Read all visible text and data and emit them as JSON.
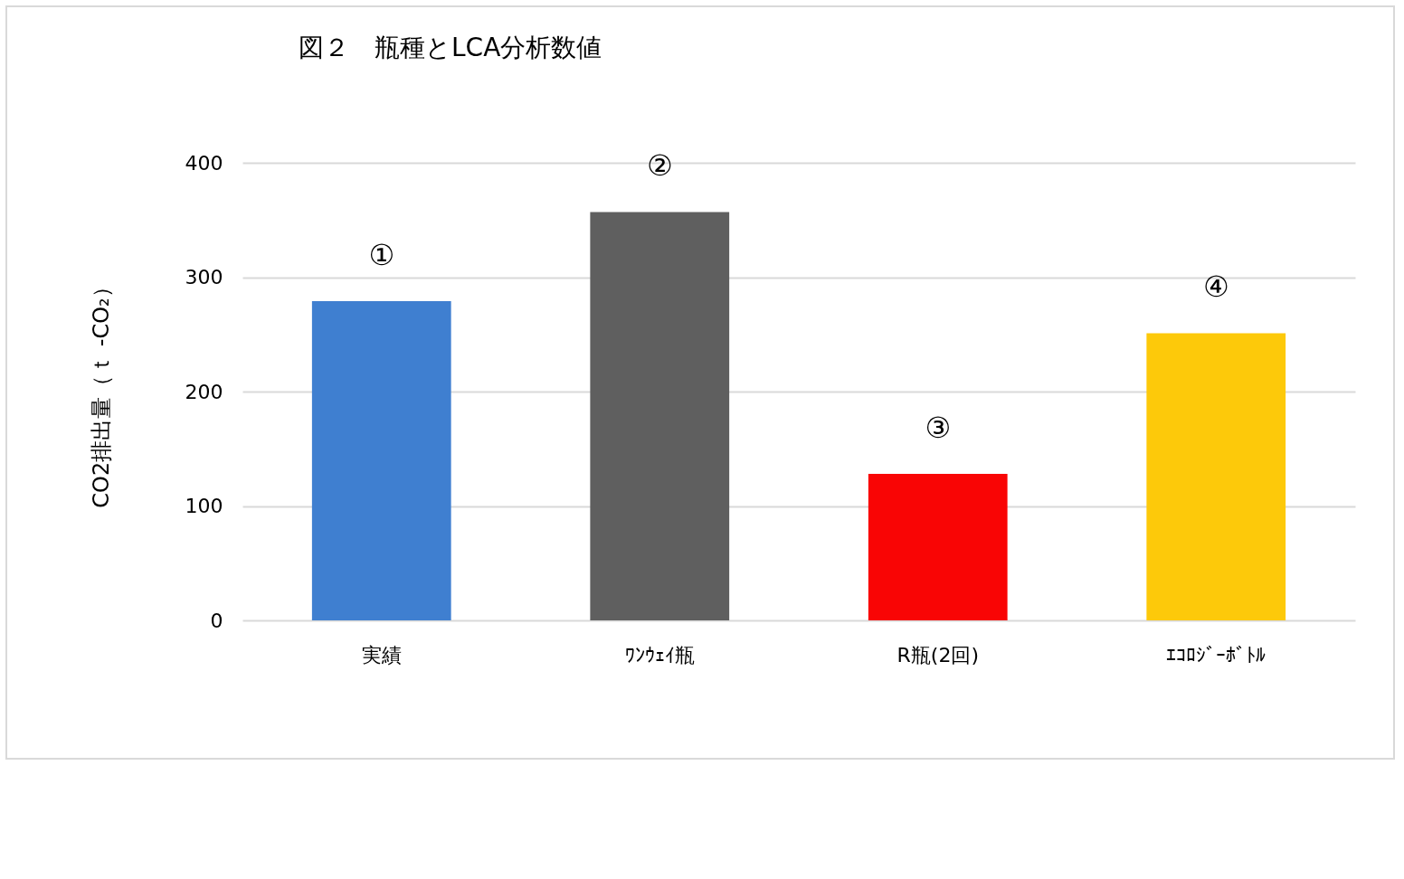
{
  "chart_data": {
    "type": "bar",
    "title": "図２　瓶種とLCA分析数値",
    "ylabel": "CO2排出量（ｔ -CO₂）",
    "categories": [
      "実績",
      "ﾜﾝｳｪｲ瓶",
      "R瓶(2回)",
      "ｴｺﾛｼﾞｰﾎﾞﾄﾙ"
    ],
    "values": [
      279,
      357,
      128,
      251
    ],
    "colors": [
      "#3f7fd0",
      "#5f5f5f",
      "#f90505",
      "#fdc90a"
    ],
    "ylim": [
      0,
      400
    ],
    "yticks": [
      0,
      100,
      200,
      300,
      400
    ],
    "grid": "y",
    "annotations": [
      {
        "text": "①",
        "x": "実績",
        "y": 279
      },
      {
        "text": "②",
        "x": "ﾜﾝｳｪｲ瓶",
        "y": 357
      },
      {
        "text": "③",
        "x": "R瓶(2回)",
        "y": 128
      },
      {
        "text": "④",
        "x": "ｴｺﾛｼﾞｰﾎﾞﾄﾙ",
        "y": 251
      }
    ]
  }
}
